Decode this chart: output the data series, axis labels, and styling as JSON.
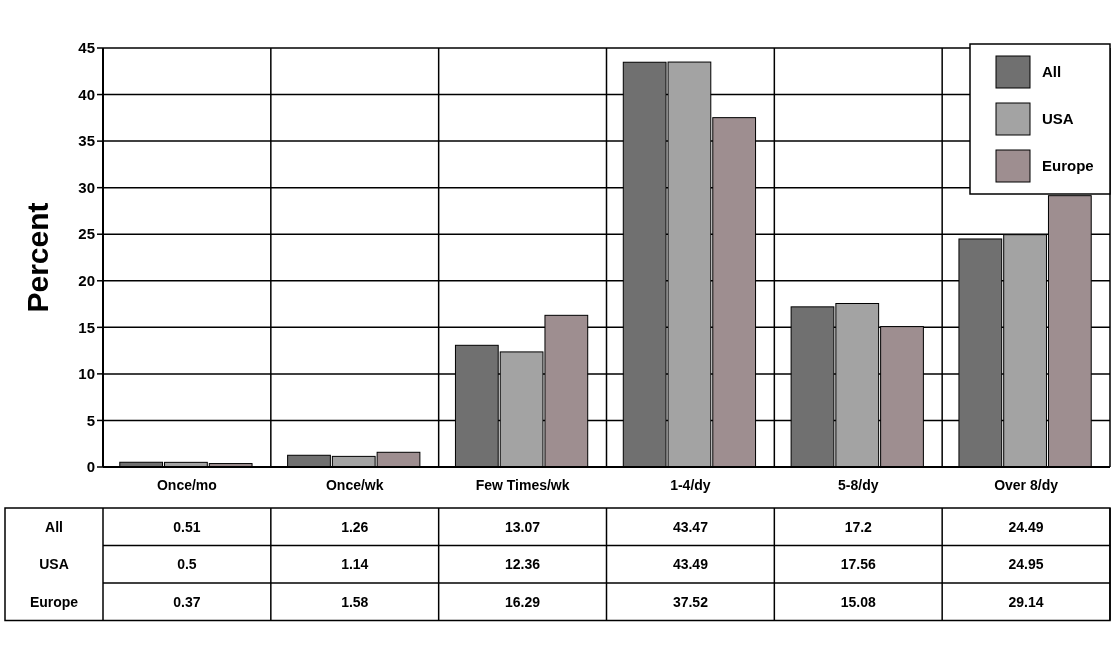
{
  "chart_data": {
    "type": "bar",
    "ylabel": "Percent",
    "categories": [
      "Once/mo",
      "Once/wk",
      "Few Times/wk",
      "1-4/dy",
      "5-8/dy",
      "Over 8/dy"
    ],
    "series": [
      {
        "name": "All",
        "color": "#707070",
        "values": [
          0.51,
          1.26,
          13.07,
          43.47,
          17.2,
          24.49
        ]
      },
      {
        "name": "USA",
        "color": "#a3a3a3",
        "values": [
          0.5,
          1.14,
          12.36,
          43.49,
          17.56,
          24.95
        ]
      },
      {
        "name": "Europe",
        "color": "#9e8e90",
        "values": [
          0.37,
          1.58,
          16.29,
          37.52,
          15.08,
          29.14
        ]
      }
    ],
    "ylim": [
      0,
      45
    ],
    "yticks": [
      0,
      5,
      10,
      15,
      20,
      25,
      30,
      35,
      40,
      45
    ],
    "grid": true,
    "legend": "top right",
    "data_labels": true
  }
}
